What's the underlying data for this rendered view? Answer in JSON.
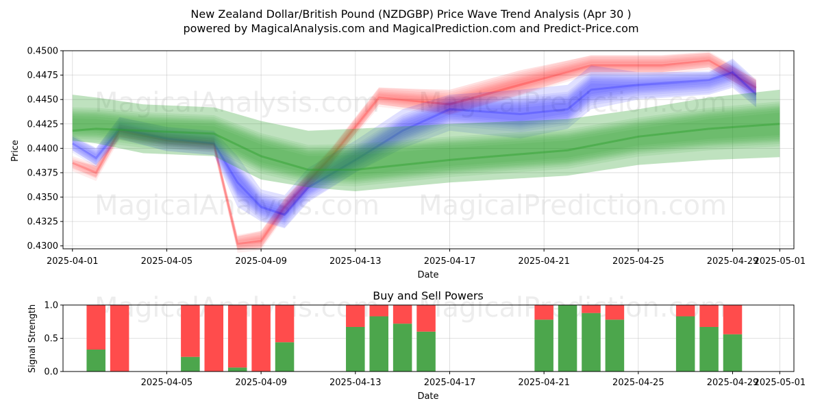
{
  "title_line1": "New Zealand Dollar/British Pound (NZDGBP) Price Wave Trend Analysis (Apr 30 )",
  "title_line2": "powered by MagicalAnalysis.com and MagicalPrediction.com and Predict-Price.com",
  "watermarks": [
    "MagicalAnalysis.com",
    "MagicalPrediction.com"
  ],
  "colors": {
    "green": "#2ca02c",
    "red": "#ff0000",
    "blue": "#0000ff",
    "bar_green": "#4ca64c",
    "bar_red": "#ff4c4c"
  },
  "chart_data": [
    {
      "type": "area",
      "title": "",
      "xlabel": "Date",
      "ylabel": "Price",
      "ylim": [
        0.4297,
        0.45
      ],
      "xlim": [
        "2025-03-31",
        "2025-05-01"
      ],
      "x_ticks": [
        "2025-04-01",
        "2025-04-05",
        "2025-04-09",
        "2025-04-13",
        "2025-04-17",
        "2025-04-21",
        "2025-04-25",
        "2025-04-29",
        "2025-05-01"
      ],
      "y_ticks": [
        "0.4300",
        "0.4325",
        "0.4350",
        "0.4375",
        "0.4400",
        "0.4425",
        "0.4450",
        "0.4475",
        "0.4500"
      ],
      "grid": true,
      "series": [
        {
          "color": "green",
          "x": [
            "2025-04-01",
            "2025-04-02",
            "2025-04-04",
            "2025-04-07",
            "2025-04-09",
            "2025-04-11",
            "2025-04-13",
            "2025-04-17",
            "2025-04-22",
            "2025-04-25",
            "2025-04-28",
            "2025-05-01"
          ],
          "upper": [
            0.4455,
            0.4452,
            0.4445,
            0.4442,
            0.4428,
            0.4418,
            0.442,
            0.4425,
            0.443,
            0.444,
            0.4452,
            0.446
          ],
          "mid": [
            0.4418,
            0.442,
            0.4418,
            0.4415,
            0.4392,
            0.4378,
            0.4378,
            0.4388,
            0.4398,
            0.4412,
            0.442,
            0.4425
          ],
          "lower": [
            0.4408,
            0.4405,
            0.4395,
            0.4392,
            0.4368,
            0.436,
            0.4356,
            0.4365,
            0.4372,
            0.4383,
            0.4388,
            0.4391
          ]
        },
        {
          "color": "blue",
          "x": [
            "2025-04-01",
            "2025-04-02",
            "2025-04-03",
            "2025-04-05",
            "2025-04-07",
            "2025-04-08",
            "2025-04-09",
            "2025-04-10",
            "2025-04-11",
            "2025-04-13",
            "2025-04-15",
            "2025-04-17",
            "2025-04-20",
            "2025-04-22",
            "2025-04-23",
            "2025-04-25",
            "2025-04-28",
            "2025-04-29",
            "2025-04-30"
          ],
          "upper": [
            0.4412,
            0.44,
            0.4432,
            0.4422,
            0.4418,
            0.4392,
            0.4358,
            0.4352,
            0.438,
            0.4408,
            0.444,
            0.4455,
            0.446,
            0.4465,
            0.4485,
            0.4478,
            0.4478,
            0.4492,
            0.447
          ],
          "mid": [
            0.4405,
            0.439,
            0.442,
            0.441,
            0.4405,
            0.4365,
            0.434,
            0.4332,
            0.436,
            0.4388,
            0.4418,
            0.444,
            0.4435,
            0.444,
            0.446,
            0.4465,
            0.447,
            0.4478,
            0.4455
          ],
          "lower": [
            0.4398,
            0.4383,
            0.441,
            0.4397,
            0.4393,
            0.434,
            0.4325,
            0.4318,
            0.4345,
            0.4375,
            0.44,
            0.4418,
            0.441,
            0.442,
            0.444,
            0.445,
            0.4455,
            0.4462,
            0.4442
          ]
        },
        {
          "color": "red",
          "x": [
            "2025-04-01",
            "2025-04-02",
            "2025-04-03",
            "2025-04-05",
            "2025-04-07",
            "2025-04-08",
            "2025-04-09",
            "2025-04-10",
            "2025-04-12",
            "2025-04-14",
            "2025-04-17",
            "2025-04-20",
            "2025-04-23",
            "2025-04-26",
            "2025-04-28",
            "2025-04-30"
          ],
          "upper": [
            0.4388,
            0.4382,
            0.442,
            0.4412,
            0.4408,
            0.431,
            0.4315,
            0.4348,
            0.44,
            0.4462,
            0.446,
            0.448,
            0.4495,
            0.4495,
            0.4498,
            0.447
          ],
          "mid": [
            0.4385,
            0.4375,
            0.4418,
            0.4408,
            0.4404,
            0.4302,
            0.4305,
            0.434,
            0.4392,
            0.4452,
            0.4445,
            0.4465,
            0.4485,
            0.4485,
            0.449,
            0.4462
          ],
          "lower": [
            0.438,
            0.437,
            0.4412,
            0.4404,
            0.44,
            0.4296,
            0.4298,
            0.4332,
            0.4385,
            0.4445,
            0.4435,
            0.4455,
            0.4478,
            0.4478,
            0.4483,
            0.4455
          ]
        }
      ]
    },
    {
      "type": "bar",
      "title": "Buy and Sell Powers",
      "xlabel": "Date",
      "ylabel": "Signal Strength",
      "ylim": [
        0,
        1
      ],
      "xlim": [
        "2025-03-31",
        "2025-05-01"
      ],
      "x_ticks": [
        "2025-04-05",
        "2025-04-09",
        "2025-04-13",
        "2025-04-17",
        "2025-04-21",
        "2025-04-25",
        "2025-04-29",
        "2025-05-01"
      ],
      "y_ticks": [
        "0.0",
        "0.5",
        "1.0"
      ],
      "grid": true,
      "categories": [
        "2025-04-02",
        "2025-04-03",
        "2025-04-06",
        "2025-04-07",
        "2025-04-08",
        "2025-04-09",
        "2025-04-10",
        "2025-04-13",
        "2025-04-14",
        "2025-04-15",
        "2025-04-16",
        "2025-04-21",
        "2025-04-22",
        "2025-04-23",
        "2025-04-24",
        "2025-04-27",
        "2025-04-28",
        "2025-04-29"
      ],
      "series": [
        {
          "color": "green",
          "values": [
            0.33,
            0.0,
            0.22,
            0.0,
            0.06,
            0.0,
            0.44,
            0.67,
            0.83,
            0.72,
            0.6,
            0.78,
            1.0,
            0.88,
            0.78,
            0.83,
            0.67,
            0.56
          ]
        },
        {
          "color": "red",
          "values": [
            0.67,
            1.0,
            0.78,
            1.0,
            0.94,
            1.0,
            0.56,
            0.33,
            0.17,
            0.28,
            0.4,
            0.22,
            0.0,
            0.12,
            0.22,
            0.17,
            0.33,
            0.44
          ]
        }
      ]
    }
  ]
}
